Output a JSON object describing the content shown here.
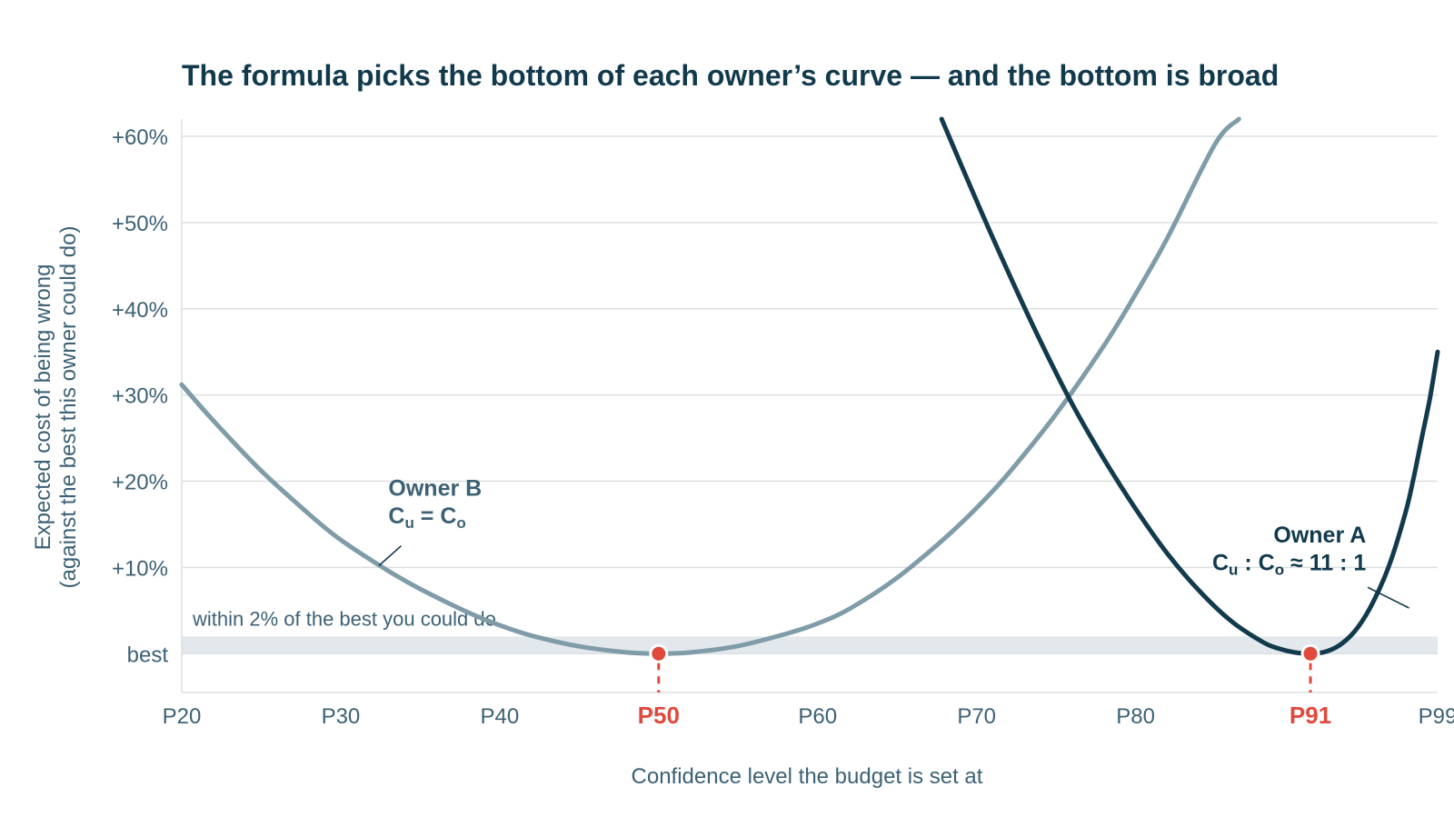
{
  "chart_data": {
    "type": "line",
    "title": "The formula picks the bottom of each owner’s curve — and the bottom is broad",
    "xlabel": "Confidence level the budget is set at",
    "ylabel_lines": [
      "Expected cost of being wrong",
      "(against the best this owner could do)"
    ],
    "x_ticks": [
      {
        "value": 20,
        "label": "P20"
      },
      {
        "value": 30,
        "label": "P30"
      },
      {
        "value": 40,
        "label": "P40"
      },
      {
        "value": 50,
        "label": "P50",
        "highlight": true
      },
      {
        "value": 60,
        "label": "P60"
      },
      {
        "value": 70,
        "label": "P70"
      },
      {
        "value": 80,
        "label": "P80"
      },
      {
        "value": 91,
        "label": "P91",
        "highlight": true
      },
      {
        "value": 99,
        "label": "P99"
      }
    ],
    "y_ticks": [
      {
        "value": 0,
        "label": "best"
      },
      {
        "value": 10,
        "label": "+10%"
      },
      {
        "value": 20,
        "label": "+20%"
      },
      {
        "value": 30,
        "label": "+30%"
      },
      {
        "value": 40,
        "label": "+40%"
      },
      {
        "value": 50,
        "label": "+50%"
      },
      {
        "value": 60,
        "label": "+60%"
      }
    ],
    "xlim": [
      20,
      99
    ],
    "ylim": [
      -4.5,
      62
    ],
    "grid": true,
    "band": {
      "from": 0,
      "to": 2,
      "label": "within 2% of the best you could do"
    },
    "series": [
      {
        "name": "Owner B",
        "ratio_label": {
          "c1": "C",
          "s1": "u",
          "mid": " = C",
          "s2": "o"
        },
        "color": "#7f9ca8",
        "x": [
          20,
          22,
          25,
          28,
          30,
          33,
          35,
          38,
          40,
          42,
          45,
          48,
          50,
          52,
          55,
          58,
          60,
          62,
          65,
          68,
          70,
          72,
          75,
          78,
          80,
          82,
          85,
          86.5
        ],
        "y": [
          31.2,
          27,
          21.2,
          16.2,
          13.2,
          9.6,
          7.5,
          4.8,
          3.3,
          2.1,
          0.85,
          0.15,
          0,
          0.15,
          0.9,
          2.3,
          3.5,
          5.2,
          8.8,
          13.4,
          16.9,
          20.9,
          27.8,
          35.7,
          41.7,
          48.2,
          59.1,
          62
        ]
      },
      {
        "name": "Owner A",
        "ratio_label": {
          "c1": "C",
          "s1": "u",
          "mid": " : C",
          "s2": "o",
          "tail": " ≈ 11 : 1"
        },
        "color": "#123a4d",
        "x": [
          67.8,
          70,
          72,
          74,
          76,
          78,
          80,
          82,
          84,
          86,
          88,
          89,
          90,
          91,
          92,
          93,
          94,
          95,
          96,
          97,
          97.5,
          98,
          98.5,
          99
        ],
        "y": [
          62,
          52.5,
          44.2,
          36.3,
          29,
          22.6,
          16.8,
          11.6,
          7.3,
          3.8,
          1.35,
          0.6,
          0.15,
          0,
          0.25,
          1.2,
          3.1,
          6.2,
          10.5,
          16.5,
          20.5,
          25,
          29.5,
          35
        ]
      }
    ],
    "optima": [
      {
        "series": "Owner B",
        "x": 50,
        "y": 0
      },
      {
        "series": "Owner A",
        "x": 91,
        "y": 0
      }
    ],
    "colors": {
      "accent": "#e04a3c",
      "grid": "#dcdfe3",
      "band": "#e3e8ec",
      "text": "#3d6175",
      "title": "#123a4d"
    }
  }
}
